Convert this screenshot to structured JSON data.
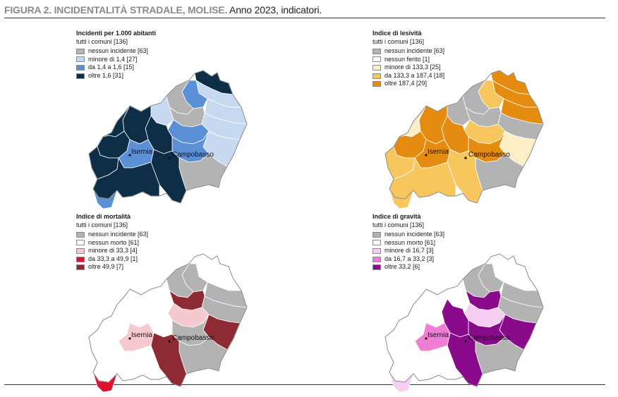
{
  "figure": {
    "title_bold": "FIGURA 2. INCIDENTALITÀ STRADALE, MOLISE.",
    "title_rest": " Anno 2023, indicatori."
  },
  "colors": {
    "no_incident": "#b3b3b3",
    "none_zero": "#ffffff",
    "outline": "#8a8a8a"
  },
  "cities": [
    "Isernia",
    "Campobasso"
  ],
  "panels": [
    {
      "title": "Incidenti per 1.000 abitanti",
      "subtitle": "tutti i comuni [136]",
      "legend": [
        {
          "label": "nessun incidente [63]",
          "color": "#b3b3b3"
        },
        {
          "label": "minore di 1,4 [27]",
          "color": "#c6d9f1"
        },
        {
          "label": "da 1,4 a 1,6 [15]",
          "color": "#5b8fd6"
        },
        {
          "label": "oltre 1,6 [31]",
          "color": "#0d2e46"
        }
      ]
    },
    {
      "title": "Indice di lesività",
      "subtitle": "tutti i comuni [136]",
      "legend": [
        {
          "label": "nessun incidente [63]",
          "color": "#b3b3b3"
        },
        {
          "label": "nessun ferito [1]",
          "color": "#ffffff"
        },
        {
          "label": "minore di 133,3 [25]",
          "color": "#fcefc6"
        },
        {
          "label": "da 133,3 a 187,4 [18]",
          "color": "#f7c75e"
        },
        {
          "label": "oltre 187,4 [29]",
          "color": "#e58c10"
        }
      ]
    },
    {
      "title": "Indice di mortalità",
      "subtitle": "tutti i comuni [136]",
      "legend": [
        {
          "label": "nessun incidente [63]",
          "color": "#b3b3b3"
        },
        {
          "label": "nessun morto [61]",
          "color": "#ffffff"
        },
        {
          "label": "minore di 33,3 [4]",
          "color": "#f6c9cf"
        },
        {
          "label": "da 33,3 a 49,9 [1]",
          "color": "#e0102e"
        },
        {
          "label": "oltre 49,9 [7]",
          "color": "#8e2a33"
        }
      ]
    },
    {
      "title": "Indice di gravità",
      "subtitle": "tutti i comuni [136]",
      "legend": [
        {
          "label": "nessun incidente [63]",
          "color": "#b3b3b3"
        },
        {
          "label": "nessun morto [61]",
          "color": "#ffffff"
        },
        {
          "label": "minore di 16,7 [3]",
          "color": "#f7cdf1"
        },
        {
          "label": "da 16,7 a 33,2 [3]",
          "color": "#ef7fd6"
        },
        {
          "label": "oltre 33,2 [6]",
          "color": "#8a0a8c"
        }
      ]
    }
  ]
}
